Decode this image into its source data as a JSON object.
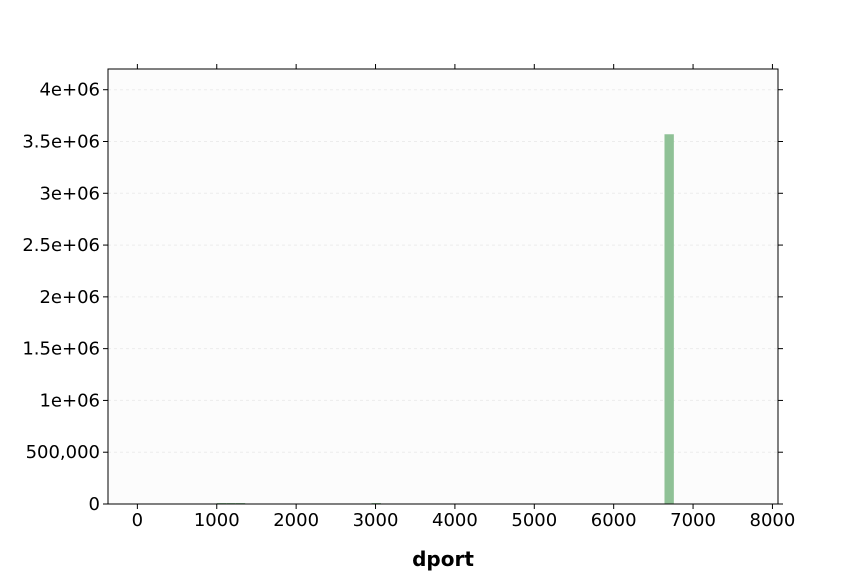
{
  "chart_data": {
    "type": "bar",
    "title": "",
    "xlabel": "dport",
    "ylabel": "",
    "bin_width": 118,
    "bins": [
      {
        "x": 1000,
        "value": 6000
      },
      {
        "x": 1120,
        "value": 9000
      },
      {
        "x": 1240,
        "value": 5000
      },
      {
        "x": 2950,
        "value": 8000
      },
      {
        "x": 6640,
        "value": 3570000
      }
    ],
    "xlim": [
      -370,
      8070
    ],
    "ylim": [
      0,
      4200000
    ],
    "xticks": [
      {
        "value": 0,
        "label": "0"
      },
      {
        "value": 1000,
        "label": "1000"
      },
      {
        "value": 2000,
        "label": "2000"
      },
      {
        "value": 3000,
        "label": "3000"
      },
      {
        "value": 4000,
        "label": "4000"
      },
      {
        "value": 5000,
        "label": "5000"
      },
      {
        "value": 6000,
        "label": "6000"
      },
      {
        "value": 7000,
        "label": "7000"
      },
      {
        "value": 8000,
        "label": "8000"
      }
    ],
    "yticks": [
      {
        "value": 0,
        "label": "0"
      },
      {
        "value": 500000,
        "label": "500,000"
      },
      {
        "value": 1000000,
        "label": "1e+06"
      },
      {
        "value": 1500000,
        "label": "1.5e+06"
      },
      {
        "value": 2000000,
        "label": "2e+06"
      },
      {
        "value": 2500000,
        "label": "2.5e+06"
      },
      {
        "value": 3000000,
        "label": "3e+06"
      },
      {
        "value": 3500000,
        "label": "3.5e+06"
      },
      {
        "value": 4000000,
        "label": "4e+06"
      }
    ],
    "grid": true,
    "legend": "none",
    "colors": {
      "bar": "#8fc196",
      "plot_background": "#fcfcfc",
      "grid": "#ececec",
      "axis": "#000000"
    }
  }
}
